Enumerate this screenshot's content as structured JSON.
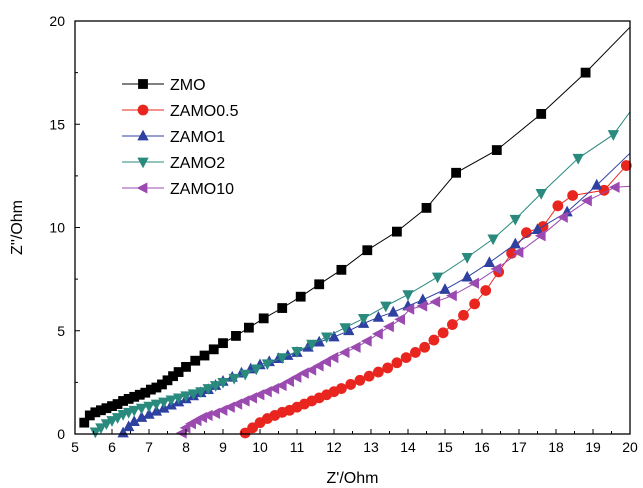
{
  "chart_data": {
    "type": "line",
    "xlabel": "Z'/Ohm",
    "ylabel": "Z''/Ohm",
    "xlim": [
      5,
      20
    ],
    "ylim": [
      0,
      20
    ],
    "xticks": [
      5,
      6,
      7,
      8,
      9,
      10,
      11,
      12,
      13,
      14,
      15,
      16,
      17,
      18,
      19,
      20
    ],
    "yticks": [
      0,
      5,
      10,
      15,
      20
    ],
    "legend_position": "upper-left",
    "series": [
      {
        "name": "ZMO",
        "color": "#000000",
        "marker": "square",
        "points": [
          [
            5.25,
            0.55
          ],
          [
            5.4,
            0.9
          ],
          [
            5.55,
            1.05
          ],
          [
            5.7,
            1.15
          ],
          [
            5.85,
            1.25
          ],
          [
            6.0,
            1.35
          ],
          [
            6.15,
            1.45
          ],
          [
            6.3,
            1.6
          ],
          [
            6.45,
            1.7
          ],
          [
            6.6,
            1.8
          ],
          [
            6.75,
            1.9
          ],
          [
            6.9,
            2.0
          ],
          [
            7.05,
            2.15
          ],
          [
            7.2,
            2.25
          ],
          [
            7.35,
            2.4
          ],
          [
            7.5,
            2.6
          ],
          [
            7.65,
            2.8
          ],
          [
            7.8,
            3.0
          ],
          [
            8.0,
            3.25
          ],
          [
            8.25,
            3.55
          ],
          [
            8.5,
            3.8
          ],
          [
            8.75,
            4.1
          ],
          [
            9.0,
            4.4
          ],
          [
            9.35,
            4.75
          ],
          [
            9.7,
            5.15
          ],
          [
            10.1,
            5.6
          ],
          [
            10.6,
            6.1
          ],
          [
            11.1,
            6.65
          ],
          [
            11.6,
            7.25
          ],
          [
            12.2,
            7.95
          ],
          [
            12.9,
            8.9
          ],
          [
            13.7,
            9.8
          ],
          [
            14.5,
            10.95
          ],
          [
            15.3,
            12.65
          ],
          [
            16.4,
            13.75
          ],
          [
            17.6,
            15.5
          ],
          [
            18.8,
            17.5
          ]
        ],
        "tail": [
          20.0,
          19.7
        ]
      },
      {
        "name": "ZAMO0.5",
        "color": "#e8261f",
        "marker": "circle",
        "points": [
          [
            9.6,
            0.05
          ],
          [
            9.8,
            0.3
          ],
          [
            10.0,
            0.55
          ],
          [
            10.2,
            0.75
          ],
          [
            10.4,
            0.9
          ],
          [
            10.6,
            1.05
          ],
          [
            10.8,
            1.15
          ],
          [
            11.0,
            1.3
          ],
          [
            11.2,
            1.45
          ],
          [
            11.4,
            1.6
          ],
          [
            11.6,
            1.75
          ],
          [
            11.8,
            1.9
          ],
          [
            12.0,
            2.05
          ],
          [
            12.2,
            2.2
          ],
          [
            12.45,
            2.4
          ],
          [
            12.7,
            2.6
          ],
          [
            12.95,
            2.8
          ],
          [
            13.2,
            3.0
          ],
          [
            13.45,
            3.2
          ],
          [
            13.7,
            3.45
          ],
          [
            13.95,
            3.7
          ],
          [
            14.2,
            3.95
          ],
          [
            14.45,
            4.2
          ],
          [
            14.7,
            4.55
          ],
          [
            14.95,
            4.9
          ],
          [
            15.2,
            5.3
          ],
          [
            15.5,
            5.75
          ],
          [
            15.8,
            6.3
          ],
          [
            16.1,
            6.95
          ],
          [
            16.45,
            7.85
          ],
          [
            16.8,
            8.75
          ],
          [
            17.2,
            9.75
          ],
          [
            17.65,
            10.05
          ],
          [
            18.05,
            11.05
          ],
          [
            18.45,
            11.55
          ],
          [
            19.3,
            11.8
          ],
          [
            19.9,
            13.0
          ]
        ],
        "tail": [
          20.0,
          13.1
        ]
      },
      {
        "name": "ZAMO1",
        "color": "#2e40a0",
        "marker": "triangle-up",
        "points": [
          [
            6.3,
            0.05
          ],
          [
            6.45,
            0.35
          ],
          [
            6.6,
            0.6
          ],
          [
            6.8,
            0.8
          ],
          [
            7.0,
            0.95
          ],
          [
            7.2,
            1.1
          ],
          [
            7.4,
            1.25
          ],
          [
            7.6,
            1.4
          ],
          [
            7.8,
            1.55
          ],
          [
            8.0,
            1.7
          ],
          [
            8.2,
            1.85
          ],
          [
            8.4,
            2.0
          ],
          [
            8.6,
            2.15
          ],
          [
            8.8,
            2.35
          ],
          [
            9.0,
            2.55
          ],
          [
            9.25,
            2.75
          ],
          [
            9.5,
            2.95
          ],
          [
            9.75,
            3.15
          ],
          [
            10.0,
            3.35
          ],
          [
            10.25,
            3.5
          ],
          [
            10.5,
            3.65
          ],
          [
            10.75,
            3.8
          ],
          [
            11.0,
            3.95
          ],
          [
            11.3,
            4.2
          ],
          [
            11.6,
            4.45
          ],
          [
            12.0,
            4.7
          ],
          [
            12.4,
            5.0
          ],
          [
            12.8,
            5.35
          ],
          [
            13.2,
            5.65
          ],
          [
            13.6,
            5.9
          ],
          [
            14.0,
            6.2
          ],
          [
            14.4,
            6.5
          ],
          [
            15.0,
            7.0
          ],
          [
            15.6,
            7.6
          ],
          [
            16.2,
            8.3
          ],
          [
            16.9,
            9.2
          ],
          [
            17.5,
            9.9
          ],
          [
            18.3,
            10.75
          ],
          [
            19.1,
            12.05
          ]
        ],
        "tail": [
          20.0,
          13.6
        ]
      },
      {
        "name": "ZAMO2",
        "color": "#2a8a7e",
        "marker": "triangle-down",
        "points": [
          [
            5.55,
            0.1
          ],
          [
            5.7,
            0.3
          ],
          [
            5.85,
            0.5
          ],
          [
            6.0,
            0.65
          ],
          [
            6.15,
            0.8
          ],
          [
            6.3,
            0.95
          ],
          [
            6.45,
            1.05
          ],
          [
            6.6,
            1.15
          ],
          [
            6.8,
            1.25
          ],
          [
            7.0,
            1.35
          ],
          [
            7.2,
            1.45
          ],
          [
            7.4,
            1.55
          ],
          [
            7.6,
            1.65
          ],
          [
            7.8,
            1.75
          ],
          [
            8.0,
            1.85
          ],
          [
            8.2,
            1.95
          ],
          [
            8.4,
            2.05
          ],
          [
            8.6,
            2.2
          ],
          [
            8.8,
            2.35
          ],
          [
            9.0,
            2.5
          ],
          [
            9.3,
            2.7
          ],
          [
            9.6,
            2.9
          ],
          [
            9.9,
            3.15
          ],
          [
            10.2,
            3.4
          ],
          [
            10.6,
            3.7
          ],
          [
            11.0,
            4.0
          ],
          [
            11.4,
            4.35
          ],
          [
            11.8,
            4.7
          ],
          [
            12.3,
            5.15
          ],
          [
            12.8,
            5.6
          ],
          [
            13.4,
            6.2
          ],
          [
            14.0,
            6.75
          ],
          [
            14.8,
            7.6
          ],
          [
            15.6,
            8.55
          ],
          [
            16.3,
            9.45
          ],
          [
            16.9,
            10.4
          ],
          [
            17.6,
            11.65
          ],
          [
            18.6,
            13.35
          ],
          [
            19.55,
            14.5
          ]
        ],
        "tail": [
          20.0,
          15.6
        ]
      },
      {
        "name": "ZAMO10",
        "color": "#9b4bb0",
        "marker": "triangle-left",
        "points": [
          [
            7.9,
            0.05
          ],
          [
            8.0,
            0.3
          ],
          [
            8.15,
            0.5
          ],
          [
            8.3,
            0.65
          ],
          [
            8.45,
            0.8
          ],
          [
            8.6,
            0.9
          ],
          [
            8.8,
            1.0
          ],
          [
            9.0,
            1.15
          ],
          [
            9.2,
            1.3
          ],
          [
            9.4,
            1.45
          ],
          [
            9.6,
            1.6
          ],
          [
            9.8,
            1.75
          ],
          [
            10.0,
            1.9
          ],
          [
            10.2,
            2.05
          ],
          [
            10.4,
            2.2
          ],
          [
            10.6,
            2.35
          ],
          [
            10.8,
            2.55
          ],
          [
            11.0,
            2.75
          ],
          [
            11.2,
            2.95
          ],
          [
            11.4,
            3.1
          ],
          [
            11.6,
            3.3
          ],
          [
            11.8,
            3.5
          ],
          [
            12.0,
            3.7
          ],
          [
            12.3,
            3.95
          ],
          [
            12.6,
            4.2
          ],
          [
            12.9,
            4.5
          ],
          [
            13.2,
            4.85
          ],
          [
            13.5,
            5.2
          ],
          [
            13.8,
            5.55
          ],
          [
            14.05,
            6.05
          ],
          [
            14.4,
            6.2
          ],
          [
            14.75,
            6.4
          ],
          [
            15.2,
            6.7
          ],
          [
            15.8,
            7.3
          ],
          [
            16.4,
            8.0
          ],
          [
            17.0,
            8.8
          ],
          [
            17.6,
            9.6
          ],
          [
            18.2,
            10.5
          ],
          [
            18.85,
            11.3
          ],
          [
            19.6,
            11.95
          ]
        ],
        "tail": [
          20.0,
          12.0
        ]
      }
    ]
  }
}
